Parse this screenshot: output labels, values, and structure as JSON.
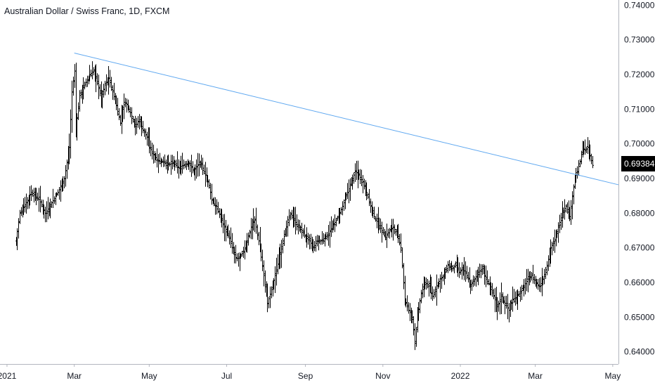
{
  "header": {
    "title": "Australian Dollar / Swiss Franc, 1D, FXCM"
  },
  "colors": {
    "bars": "#000000",
    "trendline": "#5fa8f0",
    "axis_border": "#b2b5be",
    "axis_text": "#131722",
    "background": "#ffffff",
    "price_tag_bg": "#000000",
    "price_tag_text": "#ffffff"
  },
  "chart_data": {
    "type": "ohlc",
    "symbol": "Australian Dollar / Swiss Franc",
    "interval": "1D",
    "source": "FXCM",
    "last_price": "0.69384",
    "y_ticks": [
      "0.74000",
      "0.73000",
      "0.72000",
      "0.71000",
      "0.70000",
      "0.69000",
      "0.68000",
      "0.67000",
      "0.66000",
      "0.65000",
      "0.64000"
    ],
    "x_ticks": [
      "2021",
      "Mar",
      "May",
      "Jul",
      "Sep",
      "Nov",
      "2022",
      "Mar",
      "May"
    ],
    "ylim": [
      0.6365,
      0.7415
    ],
    "xlim_days": [
      -12.5,
      474.5
    ],
    "grid": false,
    "trendline": {
      "from": {
        "day": 46,
        "value": 0.7262
      },
      "to": {
        "day": 474.5,
        "value": 0.6882
      }
    },
    "close_path": [
      [
        0,
        0.672
      ],
      [
        3,
        0.68
      ],
      [
        8,
        0.683
      ],
      [
        12,
        0.686
      ],
      [
        18,
        0.684
      ],
      [
        23,
        0.68
      ],
      [
        28,
        0.683
      ],
      [
        33,
        0.686
      ],
      [
        38,
        0.69
      ],
      [
        42,
        0.699
      ],
      [
        44,
        0.715
      ],
      [
        46,
        0.721
      ],
      [
        47,
        0.704
      ],
      [
        50,
        0.714
      ],
      [
        54,
        0.717
      ],
      [
        58,
        0.72
      ],
      [
        61,
        0.721
      ],
      [
        64,
        0.718
      ],
      [
        67,
        0.713
      ],
      [
        70,
        0.717
      ],
      [
        73,
        0.719
      ],
      [
        76,
        0.715
      ],
      [
        79,
        0.711
      ],
      [
        82,
        0.706
      ],
      [
        85,
        0.712
      ],
      [
        88,
        0.711
      ],
      [
        91,
        0.708
      ],
      [
        94,
        0.705
      ],
      [
        97,
        0.707
      ],
      [
        100,
        0.704
      ],
      [
        103,
        0.702
      ],
      [
        105,
        0.699
      ],
      [
        108,
        0.697
      ],
      [
        112,
        0.695
      ],
      [
        116,
        0.695
      ],
      [
        120,
        0.694
      ],
      [
        124,
        0.6945
      ],
      [
        128,
        0.693
      ],
      [
        132,
        0.694
      ],
      [
        136,
        0.6945
      ],
      [
        140,
        0.692
      ],
      [
        143,
        0.694
      ],
      [
        146,
        0.694
      ],
      [
        149,
        0.691
      ],
      [
        152,
        0.688
      ],
      [
        154,
        0.684
      ],
      [
        157,
        0.682
      ],
      [
        161,
        0.679
      ],
      [
        164,
        0.676
      ],
      [
        167,
        0.674
      ],
      [
        170,
        0.67
      ],
      [
        173,
        0.667
      ],
      [
        176,
        0.667
      ],
      [
        179,
        0.669
      ],
      [
        182,
        0.672
      ],
      [
        185,
        0.676
      ],
      [
        188,
        0.678
      ],
      [
        192,
        0.67
      ],
      [
        195,
        0.662
      ],
      [
        198,
        0.654
      ],
      [
        201,
        0.658
      ],
      [
        204,
        0.662
      ],
      [
        207,
        0.667
      ],
      [
        210,
        0.672
      ],
      [
        213,
        0.676
      ],
      [
        216,
        0.68
      ],
      [
        219,
        0.678
      ],
      [
        222,
        0.676
      ],
      [
        225,
        0.675
      ],
      [
        228,
        0.673
      ],
      [
        231,
        0.672
      ],
      [
        234,
        0.67
      ],
      [
        237,
        0.672
      ],
      [
        240,
        0.672
      ],
      [
        243,
        0.673
      ],
      [
        246,
        0.674
      ],
      [
        249,
        0.676
      ],
      [
        252,
        0.678
      ],
      [
        255,
        0.68
      ],
      [
        258,
        0.683
      ],
      [
        261,
        0.686
      ],
      [
        264,
        0.689
      ],
      [
        267,
        0.692
      ],
      [
        270,
        0.691
      ],
      [
        273,
        0.689
      ],
      [
        276,
        0.686
      ],
      [
        279,
        0.682
      ],
      [
        282,
        0.679
      ],
      [
        285,
        0.677
      ],
      [
        288,
        0.675
      ],
      [
        291,
        0.673
      ],
      [
        294,
        0.675
      ],
      [
        297,
        0.676
      ],
      [
        300,
        0.674
      ],
      [
        303,
        0.67
      ],
      [
        306,
        0.655
      ],
      [
        309,
        0.652
      ],
      [
        312,
        0.65
      ],
      [
        314,
        0.643
      ],
      [
        316,
        0.65
      ],
      [
        319,
        0.657
      ],
      [
        322,
        0.66
      ],
      [
        325,
        0.659
      ],
      [
        328,
        0.656
      ],
      [
        331,
        0.659
      ],
      [
        334,
        0.661
      ],
      [
        337,
        0.662
      ],
      [
        340,
        0.665
      ],
      [
        343,
        0.664
      ],
      [
        346,
        0.665
      ],
      [
        349,
        0.663
      ],
      [
        352,
        0.664
      ],
      [
        355,
        0.662
      ],
      [
        358,
        0.659
      ],
      [
        361,
        0.661
      ],
      [
        364,
        0.663
      ],
      [
        367,
        0.664
      ],
      [
        370,
        0.661
      ],
      [
        373,
        0.659
      ],
      [
        376,
        0.656
      ],
      [
        379,
        0.653
      ],
      [
        382,
        0.656
      ],
      [
        385,
        0.654
      ],
      [
        388,
        0.652
      ],
      [
        391,
        0.655
      ],
      [
        394,
        0.656
      ],
      [
        397,
        0.657
      ],
      [
        400,
        0.659
      ],
      [
        403,
        0.661
      ],
      [
        406,
        0.662
      ],
      [
        409,
        0.66
      ],
      [
        412,
        0.659
      ],
      [
        415,
        0.661
      ],
      [
        418,
        0.665
      ],
      [
        421,
        0.67
      ],
      [
        424,
        0.672
      ],
      [
        427,
        0.676
      ],
      [
        430,
        0.68
      ],
      [
        433,
        0.682
      ],
      [
        436,
        0.679
      ],
      [
        438,
        0.685
      ],
      [
        440,
        0.69
      ],
      [
        442,
        0.692
      ],
      [
        444,
        0.695
      ],
      [
        446,
        0.699
      ],
      [
        448,
        0.698
      ],
      [
        450,
        0.699
      ],
      [
        452,
        0.6965
      ],
      [
        454,
        0.6938
      ]
    ]
  }
}
